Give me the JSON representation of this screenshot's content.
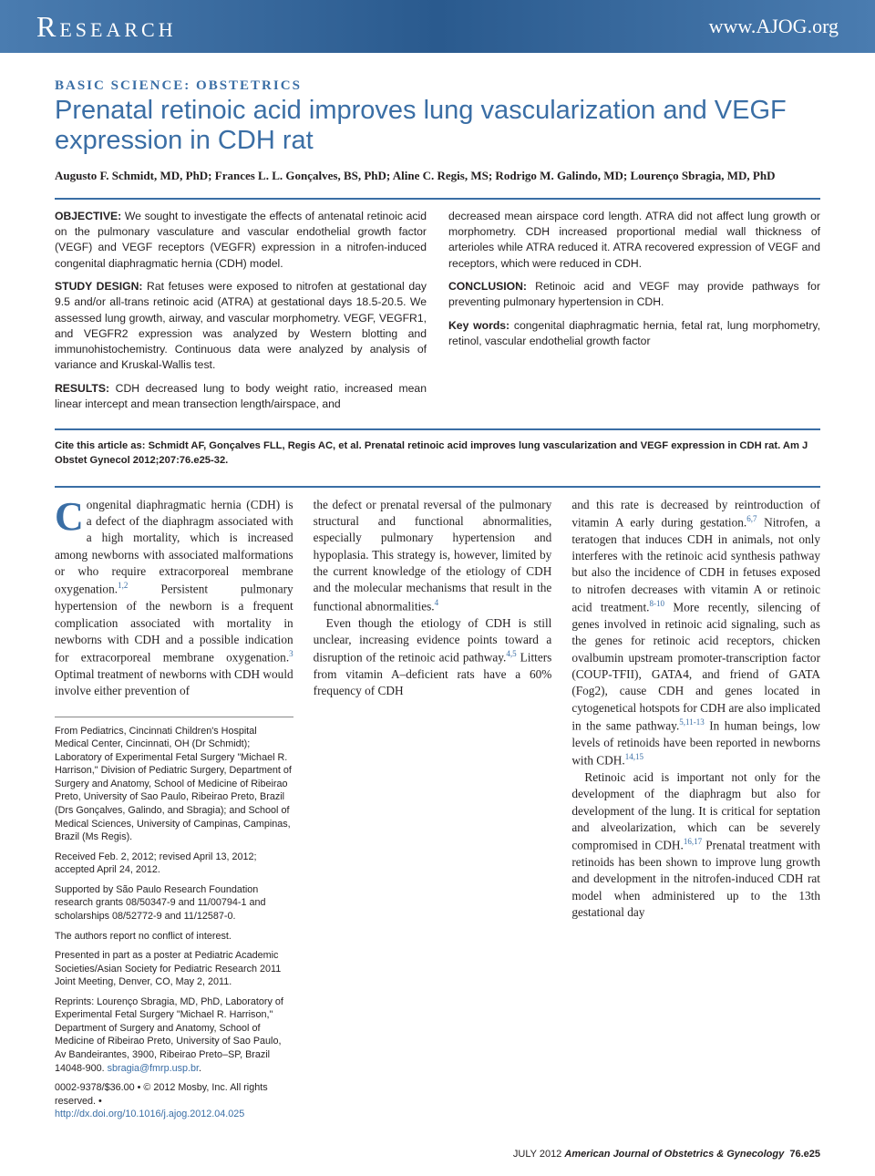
{
  "header": {
    "left": "Research",
    "right": "www.AJOG.org"
  },
  "section_label": "BASIC SCIENCE: OBSTETRICS",
  "title": "Prenatal retinoic acid improves lung vascularization and VEGF expression in CDH rat",
  "authors": "Augusto F. Schmidt, MD, PhD; Frances L. L. Gonçalves, BS, PhD; Aline C. Regis, MS; Rodrigo M. Galindo, MD; Lourenço Sbragia, MD, PhD",
  "abstract": {
    "objective_label": "OBJECTIVE:",
    "objective": " We sought to investigate the effects of antenatal retinoic acid on the pulmonary vasculature and vascular endothelial growth factor (VEGF) and VEGF receptors (VEGFR) expression in a nitrofen-induced congenital diaphragmatic hernia (CDH) model.",
    "design_label": "STUDY DESIGN:",
    "design": " Rat fetuses were exposed to nitrofen at gestational day 9.5 and/or all-trans retinoic acid (ATRA) at gestational days 18.5-20.5. We assessed lung growth, airway, and vascular morphometry. VEGF, VEGFR1, and VEGFR2 expression was analyzed by Western blotting and immunohistochemistry. Continuous data were analyzed by analysis of variance and Kruskal-Wallis test.",
    "results_label": "RESULTS:",
    "results": " CDH decreased lung to body weight ratio, increased mean linear intercept and mean transection length/airspace, and",
    "results2": "decreased mean airspace cord length. ATRA did not affect lung growth or morphometry. CDH increased proportional medial wall thickness of arterioles while ATRA reduced it. ATRA recovered expression of VEGF and receptors, which were reduced in CDH.",
    "conclusion_label": "CONCLUSION:",
    "conclusion": " Retinoic acid and VEGF may provide pathways for preventing pulmonary hypertension in CDH.",
    "keywords_label": "Key words:",
    "keywords": " congenital diaphragmatic hernia, fetal rat, lung morphometry, retinol, vascular endothelial growth factor"
  },
  "citation": "Cite this article as: Schmidt AF, Gonçalves FLL, Regis AC, et al. Prenatal retinoic acid improves lung vascularization and VEGF expression in CDH rat. Am J Obstet Gynecol 2012;207:76.e25-32.",
  "body": {
    "col1_first": "ongenital diaphragmatic hernia (CDH) is a defect of the diaphragm associated with a high mortality, which is increased among newborns with associated malformations or who require extracorporeal membrane oxygenation.",
    "col1_rest": " Persistent pulmonary hypertension of the newborn is a frequent complication associated with mortality in newborns with CDH and a possible indication for extracorporeal membrane oxygenation.",
    "col1_tail": " Optimal treatment of newborns with CDH would involve either prevention of",
    "col2_p1": "the defect or prenatal reversal of the pulmonary structural and functional abnormalities, especially pulmonary hypertension and hypoplasia. This strategy is, however, limited by the current knowledge of the etiology of CDH and the molecular mechanisms that result in the functional abnormalities.",
    "col2_p2": "Even though the etiology of CDH is still unclear, increasing evidence points toward a disruption of the retinoic acid pathway.",
    "col2_p2b": " Litters from vitamin A–deficient rats have a 60% frequency of CDH",
    "col3_p1": "and this rate is decreased by reintroduction of vitamin A early during gestation.",
    "col3_p1b": " Nitrofen, a teratogen that induces CDH in animals, not only interferes with the retinoic acid synthesis pathway but also the incidence of CDH in fetuses exposed to nitrofen decreases with vitamin A or retinoic acid treatment.",
    "col3_p1c": " More recently, silencing of genes involved in retinoic acid signaling, such as the genes for retinoic acid receptors, chicken ovalbumin upstream promoter-transcription factor (COUP-TFII), GATA4, and friend of GATA (Fog2), cause CDH and genes located in cytogenetical hotspots for CDH are also implicated in the same pathway.",
    "col3_p1d": " In human beings, low levels of retinoids have been reported in newborns with CDH.",
    "col3_p2": "Retinoic acid is important not only for the development of the diaphragm but also for development of the lung. It is critical for septation and alveolarization, which can be severely compromised in CDH.",
    "col3_p2b": " Prenatal treatment with retinoids has been shown to improve lung growth and development in the nitrofen-induced CDH rat model when administered up to the 13th gestational day"
  },
  "refs": {
    "r12": "1,2",
    "r3": "3",
    "r4": "4",
    "r45": "4,5",
    "r67": "6,7",
    "r810": "8-10",
    "r51113": "5,11-13",
    "r1415": "14,15",
    "r1617": "16,17"
  },
  "affiliations": {
    "p1": "From Pediatrics, Cincinnati Children's Hospital Medical Center, Cincinnati, OH (Dr Schmidt); Laboratory of Experimental Fetal Surgery \"Michael R. Harrison,\" Division of Pediatric Surgery, Department of Surgery and Anatomy, School of Medicine of Ribeirao Preto, University of Sao Paulo, Ribeirao Preto, Brazil (Drs Gonçalves, Galindo, and Sbragia); and School of Medical Sciences, University of Campinas, Campinas, Brazil (Ms Regis).",
    "p2": "Received Feb. 2, 2012; revised April 13, 2012; accepted April 24, 2012.",
    "p3": "Supported by São Paulo Research Foundation research grants 08/50347-9 and 11/00794-1 and scholarships 08/52772-9 and 11/12587-0.",
    "p4": "The authors report no conflict of interest.",
    "p5": "Presented in part as a poster at Pediatric Academic Societies/Asian Society for Pediatric Research 2011 Joint Meeting, Denver, CO, May 2, 2011.",
    "p6a": "Reprints: Lourenço Sbragia, MD, PhD, Laboratory of Experimental Fetal Surgery \"Michael R. Harrison,\" Department of Surgery and Anatomy, School of Medicine of Ribeirao Preto, University of Sao Paulo, Av Bandeirantes, 3900, Ribeirao Preto–SP, Brazil 14048-900. ",
    "p6_email": "sbragia@fmrp.usp.br",
    "p7a": "0002-9378/$36.00 • © 2012 Mosby, Inc. All rights reserved. • ",
    "p7_doi": "http://dx.doi.org/10.1016/j.ajog.2012.04.025"
  },
  "footer": {
    "date": "JULY 2012",
    "journal": "American Journal of Obstetrics & Gynecology",
    "page": "76.e25"
  },
  "colors": {
    "brand_blue": "#3a6ea5",
    "header_grad_outer": "#4a7cb0",
    "header_grad_inner": "#2a5a8e"
  }
}
